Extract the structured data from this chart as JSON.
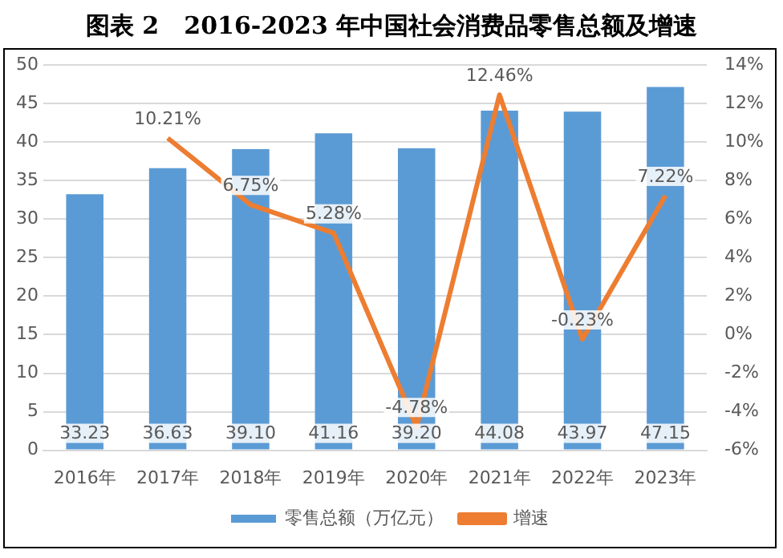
{
  "chart_data": {
    "type": "bar",
    "title": "图表 2   2016-2023 年中国社会消费品零售总额及增速",
    "categories": [
      "2016年",
      "2017年",
      "2018年",
      "2019年",
      "2020年",
      "2021年",
      "2022年",
      "2023年"
    ],
    "series": [
      {
        "name": "零售总额（万亿元）",
        "color": "#5b9bd5",
        "values": [
          33.23,
          36.63,
          39.1,
          41.16,
          39.2,
          44.08,
          43.97,
          47.15
        ],
        "value_labels": [
          "33.23",
          "36.63",
          "39.10",
          "41.16",
          "39.20",
          "44.08",
          "43.97",
          "47.15"
        ]
      },
      {
        "name": "增速",
        "type": "line",
        "axis": "y2",
        "color": "#ed7d31",
        "values": [
          null,
          10.21,
          6.75,
          5.28,
          -4.78,
          12.46,
          -0.23,
          7.22
        ],
        "value_labels": [
          null,
          "10.21%",
          "6.75%",
          "5.28%",
          "-4.78%",
          "12.46%",
          "-0.23%",
          "7.22%"
        ]
      }
    ],
    "ylim": [
      0,
      50
    ],
    "yticks": [
      0,
      5,
      10,
      15,
      20,
      25,
      30,
      35,
      40,
      45,
      50
    ],
    "y2lim": [
      -6,
      14
    ],
    "y2ticks": [
      {
        "value": -6,
        "label": "-6%"
      },
      {
        "value": -4,
        "label": "-4%"
      },
      {
        "value": -2,
        "label": "-2%"
      },
      {
        "value": 0,
        "label": "0%"
      },
      {
        "value": 2,
        "label": "2%"
      },
      {
        "value": 4,
        "label": "4%"
      },
      {
        "value": 6,
        "label": "6%"
      },
      {
        "value": 8,
        "label": "8%"
      },
      {
        "value": 10,
        "label": "10%"
      },
      {
        "value": 12,
        "label": "12%"
      },
      {
        "value": 14,
        "label": "14%"
      }
    ],
    "grid": "y",
    "legend": "bottom",
    "marker": "none",
    "line_style": "solid"
  }
}
